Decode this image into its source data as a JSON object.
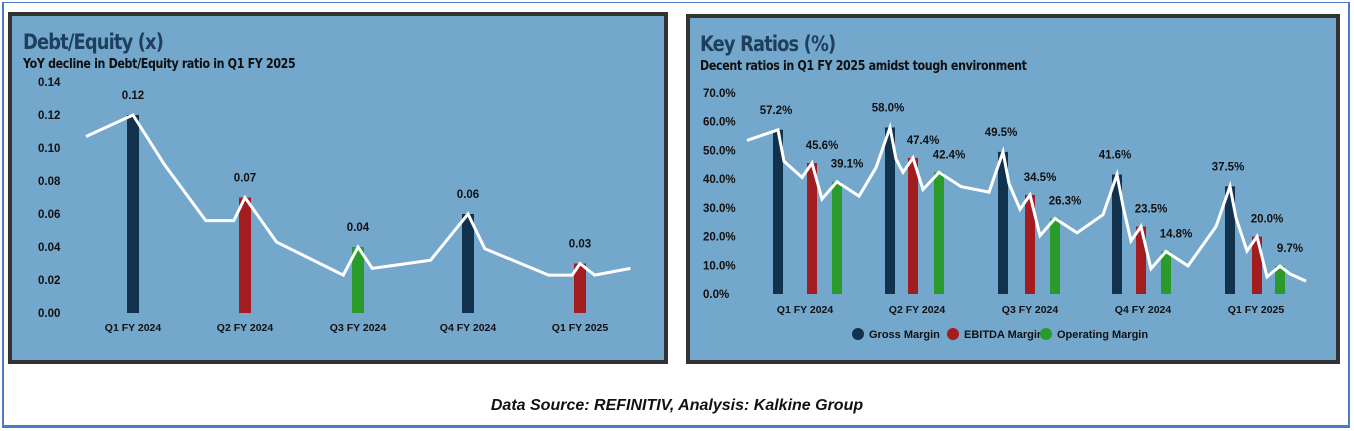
{
  "footer": {
    "source_text": "Data Source: REFINITIV, Analysis: Kalkine Group"
  },
  "colors": {
    "panel_bg": "#74a7cc",
    "panel_border": "#333333",
    "title": "#1d3e5c",
    "gross": "#12314d",
    "ebitda": "#a31c1f",
    "operating": "#2a9a2a",
    "trend_line": "#ffffff"
  },
  "chart_data": [
    {
      "type": "bar",
      "title": "Debt/Equity (x)",
      "subtitle": "YoY decline in Debt/Equity ratio in Q1 FY 2025",
      "xlabel": "",
      "ylabel": "",
      "categories": [
        "Q1 FY 2024",
        "Q2 FY 2024",
        "Q3 FY 2024",
        "Q4 FY 2024",
        "Q1 FY 2025"
      ],
      "values": [
        0.12,
        0.07,
        0.04,
        0.06,
        0.03
      ],
      "data_labels": [
        "0.12",
        "0.07",
        "0.04",
        "0.06",
        "0.03"
      ],
      "bar_colors": [
        "#12314d",
        "#a31c1f",
        "#2a9a2a",
        "#12314d",
        "#a31c1f"
      ],
      "ylim": [
        0,
        0.14
      ],
      "yticks": [
        0.0,
        0.02,
        0.04,
        0.06,
        0.08,
        0.1,
        0.12,
        0.14
      ],
      "ytick_labels": [
        "0.00",
        "0.02",
        "0.04",
        "0.06",
        "0.08",
        "0.10",
        "0.12",
        "0.14"
      ],
      "grid": false,
      "legend": "none",
      "trend_line": {
        "description": "white decorative line tracing bar tops",
        "points": [
          [
            -0.42,
            0.107
          ],
          [
            0,
            0.12
          ],
          [
            0.28,
            0.09
          ],
          [
            0.65,
            0.056
          ],
          [
            0.9,
            0.056
          ],
          [
            1.0,
            0.07
          ],
          [
            1.28,
            0.043
          ],
          [
            1.87,
            0.023
          ],
          [
            2.0,
            0.04
          ],
          [
            2.13,
            0.027
          ],
          [
            2.66,
            0.032
          ],
          [
            3.0,
            0.06
          ],
          [
            3.15,
            0.039
          ],
          [
            3.72,
            0.023
          ],
          [
            3.93,
            0.023
          ],
          [
            4.0,
            0.03
          ],
          [
            4.13,
            0.023
          ],
          [
            4.45,
            0.027
          ]
        ]
      }
    },
    {
      "type": "bar",
      "title": "Key Ratios (%)",
      "subtitle": "Decent ratios in Q1 FY 2025 amidst tough environment",
      "xlabel": "",
      "ylabel": "",
      "categories": [
        "Q1 FY 2024",
        "Q2 FY 2024",
        "Q3 FY 2024",
        "Q4 FY 2024",
        "Q1 FY 2025"
      ],
      "series": [
        {
          "name": "Gross Margin",
          "color": "#12314d",
          "values": [
            57.2,
            58.0,
            49.5,
            41.6,
            37.5
          ],
          "data_labels": [
            "57.2%",
            "58.0%",
            "49.5%",
            "41.6%",
            "37.5%"
          ]
        },
        {
          "name": "EBITDA Margin",
          "color": "#a31c1f",
          "values": [
            45.6,
            47.4,
            34.5,
            23.5,
            20.0
          ],
          "data_labels": [
            "45.6%",
            "47.4%",
            "34.5%",
            "23.5%",
            "20.0%"
          ]
        },
        {
          "name": "Operating Margin",
          "color": "#2a9a2a",
          "values": [
            39.1,
            42.4,
            26.3,
            14.8,
            9.7
          ],
          "data_labels": [
            "39.1%",
            "42.4%",
            "26.3%",
            "14.8%",
            "9.7%"
          ]
        }
      ],
      "ylim": [
        0,
        70
      ],
      "yticks": [
        0,
        10,
        20,
        30,
        40,
        50,
        60,
        70
      ],
      "ytick_labels": [
        "0.0%",
        "10.0%",
        "20.0%",
        "30.0%",
        "40.0%",
        "50.0%",
        "60.0%",
        "70.0%"
      ],
      "grid": false,
      "legend": "bottom",
      "trend_line": {
        "description": "white decorative zig-zag line tracing bar tops"
      }
    }
  ]
}
